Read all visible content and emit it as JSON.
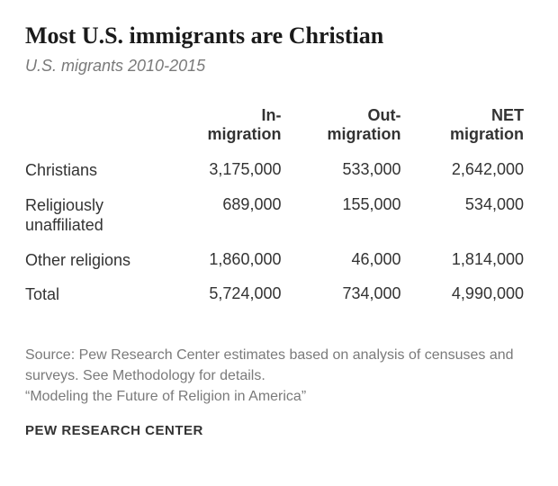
{
  "title": "Most U.S. immigrants are Christian",
  "subtitle": "U.S. migrants 2010-2015",
  "table": {
    "type": "table",
    "columns": [
      "",
      "In-migration",
      "Out-migration",
      "NET migration"
    ],
    "rows": [
      {
        "label": "Christians",
        "cells": [
          "3,175,000",
          "533,000",
          "2,642,000"
        ]
      },
      {
        "label": "Religiously unaffiliated",
        "cells": [
          "689,000",
          "155,000",
          "534,000"
        ]
      },
      {
        "label": "Other religions",
        "cells": [
          "1,860,000",
          "46,000",
          "1,814,000"
        ]
      },
      {
        "label": "Total",
        "cells": [
          "5,724,000",
          "734,000",
          "4,990,000"
        ]
      }
    ],
    "col_align": [
      "left",
      "right",
      "right",
      "right"
    ],
    "header_fontweight": "bold",
    "fontsize": 18,
    "text_color": "#333333",
    "background_color": "#ffffff"
  },
  "source_line1": "Source: Pew Research Center estimates based on analysis of censuses and surveys. See Methodology for details.",
  "source_line2": "“Modeling the Future of Religion in America”",
  "footer": "PEW RESEARCH CENTER"
}
